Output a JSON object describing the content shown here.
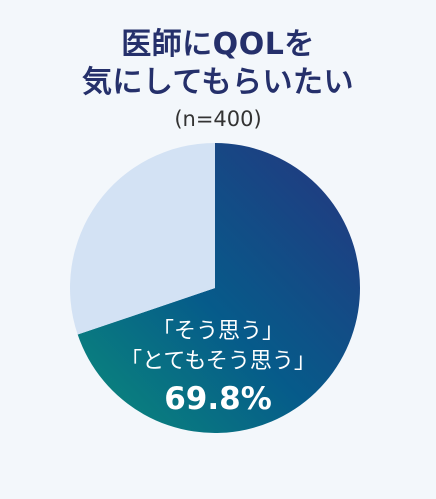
{
  "header": {
    "title_line1": "医師にQOLを",
    "title_line2": "気にしてもらいたい",
    "subtitle": "(n=400)"
  },
  "colors": {
    "title": "#25306b",
    "slice_main_start": "#0b8c7a",
    "slice_main_end": "#26357f",
    "slice_rest": "#d3e2f4",
    "background": "#f3f7fb"
  },
  "chart_data": {
    "type": "pie",
    "title": "医師にQOLを気にしてもらいたい",
    "subtitle": "(n=400)",
    "slices": [
      {
        "label": "「そう思う」「とてもそう思う」",
        "value": 69.8,
        "display": "69.8%"
      },
      {
        "label": "",
        "value": 30.2
      }
    ],
    "label_lines": [
      "「そう思う」",
      "「とてもそう思う」"
    ],
    "value_label": "69.8%"
  }
}
